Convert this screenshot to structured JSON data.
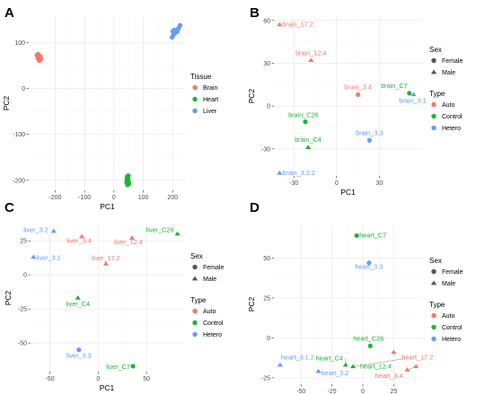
{
  "colors": {
    "Auto": "#F8766D",
    "Control": "#1FB336",
    "Hetero": "#619CFF",
    "Brain": "#F8766D",
    "Heart": "#1FB336",
    "Liver": "#619CFF",
    "grid_major": "#ebebeb",
    "grid_minor": "#f5f5f5",
    "neutral": "#555555"
  },
  "chart_data": [
    {
      "type": "scatter",
      "letter": "A",
      "xlabel": "PC1",
      "ylabel": "PC2",
      "xlim": [
        -290,
        245
      ],
      "ylim": [
        -222,
        158
      ],
      "xticks": [
        -200,
        -100,
        0,
        100,
        200
      ],
      "yticks": [
        -200,
        -100,
        0,
        100
      ],
      "legends": [
        {
          "title": "Tissue",
          "kind": "color",
          "items": [
            {
              "label": "Brain",
              "key": "Brain"
            },
            {
              "label": "Heart",
              "key": "Heart"
            },
            {
              "label": "Liver",
              "key": "Liver"
            }
          ]
        }
      ],
      "points": [
        {
          "x": -258,
          "y": 75,
          "color": "Brain",
          "shape": "circle"
        },
        {
          "x": -255,
          "y": 72,
          "color": "Brain",
          "shape": "circle"
        },
        {
          "x": -260,
          "y": 70,
          "color": "Brain",
          "shape": "circle"
        },
        {
          "x": -252,
          "y": 68,
          "color": "Brain",
          "shape": "circle"
        },
        {
          "x": -256,
          "y": 65,
          "color": "Brain",
          "shape": "circle"
        },
        {
          "x": -250,
          "y": 70,
          "color": "Brain",
          "shape": "circle"
        },
        {
          "x": -249,
          "y": 64,
          "color": "Brain",
          "shape": "circle"
        },
        {
          "x": -262,
          "y": 73,
          "color": "Brain",
          "shape": "circle"
        },
        {
          "x": -254,
          "y": 61,
          "color": "Brain",
          "shape": "circle"
        },
        {
          "x": -259,
          "y": 66,
          "color": "Brain",
          "shape": "circle"
        },
        {
          "x": 45,
          "y": -192,
          "color": "Heart",
          "shape": "circle"
        },
        {
          "x": 48,
          "y": -196,
          "color": "Heart",
          "shape": "circle"
        },
        {
          "x": 46,
          "y": -200,
          "color": "Heart",
          "shape": "circle"
        },
        {
          "x": 50,
          "y": -203,
          "color": "Heart",
          "shape": "circle"
        },
        {
          "x": 47,
          "y": -206,
          "color": "Heart",
          "shape": "circle"
        },
        {
          "x": 44,
          "y": -198,
          "color": "Heart",
          "shape": "circle"
        },
        {
          "x": 49,
          "y": -190,
          "color": "Heart",
          "shape": "circle"
        },
        {
          "x": 51,
          "y": -208,
          "color": "Heart",
          "shape": "circle"
        },
        {
          "x": 46,
          "y": -210,
          "color": "Heart",
          "shape": "circle"
        },
        {
          "x": 43,
          "y": -204,
          "color": "Heart",
          "shape": "circle"
        },
        {
          "x": 200,
          "y": 125,
          "color": "Liver",
          "shape": "circle"
        },
        {
          "x": 206,
          "y": 128,
          "color": "Liver",
          "shape": "circle"
        },
        {
          "x": 212,
          "y": 126,
          "color": "Liver",
          "shape": "circle"
        },
        {
          "x": 218,
          "y": 130,
          "color": "Liver",
          "shape": "circle"
        },
        {
          "x": 225,
          "y": 138,
          "color": "Liver",
          "shape": "circle"
        },
        {
          "x": 203,
          "y": 118,
          "color": "Liver",
          "shape": "circle"
        },
        {
          "x": 209,
          "y": 122,
          "color": "Liver",
          "shape": "circle"
        },
        {
          "x": 215,
          "y": 124,
          "color": "Liver",
          "shape": "circle"
        },
        {
          "x": 198,
          "y": 112,
          "color": "Liver",
          "shape": "circle"
        },
        {
          "x": 221,
          "y": 132,
          "color": "Liver",
          "shape": "circle"
        }
      ]
    },
    {
      "type": "scatter",
      "letter": "B",
      "xlabel": "PC1",
      "ylabel": "PC2",
      "xlim": [
        -44,
        60
      ],
      "ylim": [
        -49,
        63
      ],
      "xticks": [
        -30,
        0,
        30
      ],
      "yticks": [
        -30,
        0,
        30,
        60
      ],
      "legends": [
        {
          "title": "Sex",
          "kind": "shape",
          "items": [
            {
              "label": "Female",
              "shape": "circle"
            },
            {
              "label": "Male",
              "shape": "triangle"
            }
          ]
        },
        {
          "title": "Type",
          "kind": "color",
          "items": [
            {
              "label": "Auto",
              "key": "Auto"
            },
            {
              "label": "Control",
              "key": "Control"
            },
            {
              "label": "Hetero",
              "key": "Hetero"
            }
          ]
        }
      ],
      "points": [
        {
          "x": -40,
          "y": 57,
          "color": "Auto",
          "shape": "triangle",
          "label": "brain_17.2",
          "ldx": 3,
          "ldy": 2,
          "anchor": "start"
        },
        {
          "x": -18,
          "y": 32,
          "color": "Auto",
          "shape": "triangle",
          "label": "brain_12.4",
          "ldx": 0,
          "ldy": -6,
          "anchor": "middle"
        },
        {
          "x": 15,
          "y": 8,
          "color": "Auto",
          "shape": "circle",
          "label": "brain_3.4",
          "ldx": 0,
          "ldy": -6,
          "anchor": "middle"
        },
        {
          "x": 51,
          "y": 9,
          "color": "Control",
          "shape": "circle",
          "label": "brain_C7",
          "ldx": -2,
          "ldy": -6,
          "anchor": "end"
        },
        {
          "x": 54,
          "y": 8,
          "color": "Hetero",
          "shape": "triangle",
          "label": "brain_3.1",
          "ldx": -1,
          "ldy": 9,
          "anchor": "middle"
        },
        {
          "x": -22,
          "y": -11,
          "color": "Control",
          "shape": "circle",
          "label": "brain_C26",
          "ldx": -2,
          "ldy": -5,
          "anchor": "middle"
        },
        {
          "x": -20,
          "y": -29,
          "color": "Control",
          "shape": "triangle",
          "label": "brain_C4",
          "ldx": 0,
          "ldy": -6,
          "anchor": "middle"
        },
        {
          "x": 23,
          "y": -24,
          "color": "Hetero",
          "shape": "circle",
          "label": "brain_3.3",
          "ldx": 0,
          "ldy": -6,
          "anchor": "middle"
        },
        {
          "x": -40,
          "y": -47,
          "color": "Hetero",
          "shape": "triangle",
          "label": "brain_3.2.2",
          "ldx": 3,
          "ldy": 2,
          "anchor": "start"
        }
      ]
    },
    {
      "type": "scatter",
      "letter": "C",
      "xlabel": "PC1",
      "ylabel": "PC2",
      "xlim": [
        -70,
        88
      ],
      "ylim": [
        -71,
        37
      ],
      "xticks": [
        -50,
        0,
        50
      ],
      "yticks": [
        -50,
        -25,
        0,
        25
      ],
      "legends": [
        {
          "title": "Sex",
          "kind": "shape",
          "items": [
            {
              "label": "Female",
              "shape": "circle"
            },
            {
              "label": "Male",
              "shape": "triangle"
            }
          ]
        },
        {
          "title": "Type",
          "kind": "color",
          "items": [
            {
              "label": "Auto",
              "key": "Auto"
            },
            {
              "label": "Control",
              "key": "Control"
            },
            {
              "label": "Hetero",
              "key": "Hetero"
            }
          ]
        }
      ],
      "points": [
        {
          "x": -46,
          "y": 32,
          "color": "Hetero",
          "shape": "triangle",
          "label": "liver_3.2",
          "ldx": -6,
          "ldy": 1,
          "anchor": "end"
        },
        {
          "x": -17,
          "y": 28,
          "color": "Auto",
          "shape": "triangle",
          "label": "liver_3.4",
          "ldx": -3,
          "ldy": 7,
          "anchor": "middle"
        },
        {
          "x": 82,
          "y": 30,
          "color": "Control",
          "shape": "triangle",
          "label": "liver_C26",
          "ldx": -4,
          "ldy": -2,
          "anchor": "end"
        },
        {
          "x": 35,
          "y": 27,
          "color": "Auto",
          "shape": "triangle",
          "label": "liver_12.4",
          "ldx": -4,
          "ldy": 7,
          "anchor": "middle"
        },
        {
          "x": -67,
          "y": 13,
          "color": "Hetero",
          "shape": "triangle",
          "label": "liver_3.1",
          "ldx": 3,
          "ldy": 3,
          "anchor": "start"
        },
        {
          "x": 8,
          "y": 8,
          "color": "Auto",
          "shape": "triangle",
          "label": "liver_17.2",
          "ldx": 0,
          "ldy": -4,
          "anchor": "middle"
        },
        {
          "x": -21,
          "y": -17,
          "color": "Control",
          "shape": "triangle",
          "label": "liver_C4",
          "ldx": 0,
          "ldy": 9,
          "anchor": "middle"
        },
        {
          "x": -20,
          "y": -55,
          "color": "Hetero",
          "shape": "circle",
          "label": "liver_3.3",
          "ldx": 0,
          "ldy": 9,
          "anchor": "middle"
        },
        {
          "x": 36,
          "y": -67,
          "color": "Control",
          "shape": "circle",
          "label": "liver_C7",
          "ldx": -3,
          "ldy": 3,
          "anchor": "end"
        }
      ]
    },
    {
      "type": "scatter",
      "letter": "D",
      "xlabel": "PC1",
      "ylabel": "PC2",
      "xlim": [
        -72,
        48
      ],
      "ylim": [
        -29,
        71
      ],
      "xticks": [
        -50,
        -25,
        0,
        25
      ],
      "yticks": [
        -25,
        0,
        25,
        50
      ],
      "legends": [
        {
          "title": "Sex",
          "kind": "shape",
          "items": [
            {
              "label": "Female",
              "shape": "circle"
            },
            {
              "label": "Male",
              "shape": "triangle"
            }
          ]
        },
        {
          "title": "Type",
          "kind": "color",
          "items": [
            {
              "label": "Auto",
              "key": "Auto"
            },
            {
              "label": "Control",
              "key": "Control"
            },
            {
              "label": "Hetero",
              "key": "Hetero"
            }
          ]
        }
      ],
      "points": [
        {
          "x": -5,
          "y": 64,
          "color": "Control",
          "shape": "circle",
          "label": "heart_C7",
          "ldx": 3,
          "ldy": 2,
          "anchor": "start"
        },
        {
          "x": 5,
          "y": 47,
          "color": "Hetero",
          "shape": "circle",
          "label": "heart_3.3",
          "ldx": 0,
          "ldy": 7,
          "anchor": "middle"
        },
        {
          "x": 6,
          "y": -5,
          "color": "Control",
          "shape": "circle",
          "label": "heart_C26",
          "ldx": -2,
          "ldy": -6,
          "anchor": "middle"
        },
        {
          "x": 25,
          "y": -9,
          "color": "Auto",
          "shape": "triangle",
          "label": "heart_17.2",
          "ldx": 9,
          "ldy": 8,
          "anchor": "start"
        },
        {
          "x": -14,
          "y": -17,
          "color": "Control",
          "shape": "triangle",
          "label": "heart_C4",
          "ldx": -3,
          "ldy": -5,
          "anchor": "end"
        },
        {
          "x": -8,
          "y": -18,
          "color": "Control",
          "shape": "triangle",
          "label": "heart_12.4",
          "ldx": 8,
          "ldy": 2,
          "anchor": "start"
        },
        {
          "x": 36,
          "y": -20,
          "color": "Auto",
          "shape": "triangle",
          "label": "heart_3.4",
          "ldx": -5,
          "ldy": 9,
          "anchor": "end"
        },
        {
          "x": 43,
          "y": -18,
          "color": "Auto",
          "shape": "triangle"
        },
        {
          "x": -67,
          "y": -17,
          "color": "Hetero",
          "shape": "triangle",
          "label": "heart_3.1.2",
          "ldx": 1,
          "ldy": -6,
          "anchor": "start"
        },
        {
          "x": -36,
          "y": -21,
          "color": "Hetero",
          "shape": "triangle",
          "label": "heart_3.2",
          "ldx": 3,
          "ldy": 4,
          "anchor": "start"
        }
      ],
      "leaders": [
        {
          "x1": -14,
          "y1": -17,
          "x2": -14,
          "y2": -13
        },
        {
          "x1": -8,
          "y1": -18,
          "x2": 34,
          "y2": -13
        },
        {
          "x1": 36,
          "y1": -20,
          "x2": 43,
          "y2": -18
        }
      ]
    }
  ]
}
